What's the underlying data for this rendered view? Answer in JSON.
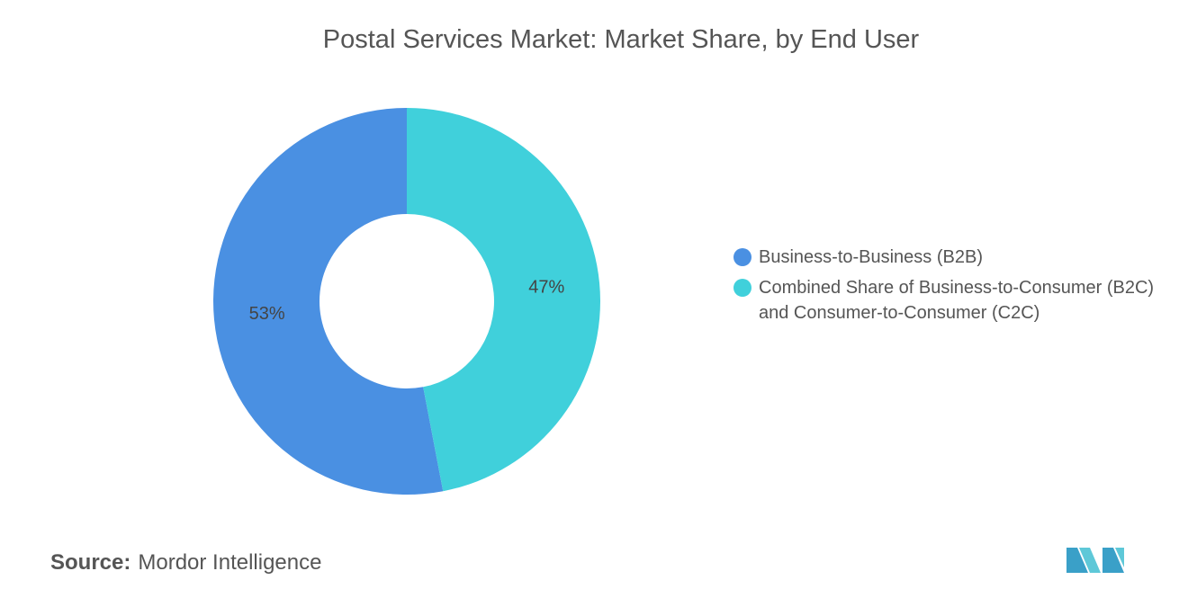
{
  "chart_data": {
    "type": "donut",
    "title": "Postal Services Market: Market Share, by End User",
    "series": [
      {
        "name": "Business-to-Business (B2B)",
        "color": "#4a90e2",
        "values": [
          53
        ],
        "value_labels": [
          "53%"
        ]
      },
      {
        "name": "Combined Share of Business-to-Consumer (B2C) and Consumer-to-Consumer (C2C)",
        "color": "#40d0db",
        "values": [
          47
        ],
        "value_labels": [
          "47%"
        ]
      }
    ]
  },
  "source": {
    "label": "Source:",
    "text": "Mordor Intelligence"
  }
}
